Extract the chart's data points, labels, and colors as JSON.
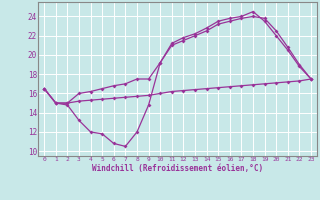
{
  "xlabel": "Windchill (Refroidissement éolien,°C)",
  "bg_color": "#c8e8e8",
  "line_color": "#993399",
  "line1_x": [
    0,
    1,
    2,
    3,
    4,
    5,
    6,
    7,
    8,
    9,
    10,
    11,
    12,
    13,
    14,
    15,
    16,
    17,
    18,
    19,
    20,
    21,
    22,
    23
  ],
  "line1_y": [
    16.5,
    15.0,
    14.8,
    13.2,
    12.0,
    11.8,
    10.8,
    10.5,
    12.0,
    14.8,
    19.2,
    21.2,
    21.8,
    22.2,
    22.8,
    23.5,
    23.8,
    24.0,
    24.5,
    23.5,
    22.0,
    20.5,
    18.8,
    17.5
  ],
  "line2_x": [
    0,
    1,
    2,
    3,
    4,
    5,
    6,
    7,
    8,
    9,
    10,
    11,
    12,
    13,
    14,
    15,
    16,
    17,
    18,
    19,
    20,
    21,
    22,
    23
  ],
  "line2_y": [
    16.5,
    15.0,
    15.0,
    16.0,
    16.2,
    16.5,
    16.8,
    17.0,
    17.5,
    17.5,
    19.2,
    21.0,
    21.5,
    22.0,
    22.5,
    23.2,
    23.5,
    23.8,
    24.0,
    23.8,
    22.5,
    20.8,
    19.0,
    17.5
  ],
  "line3_x": [
    0,
    1,
    2,
    3,
    4,
    5,
    6,
    7,
    8,
    9,
    10,
    11,
    12,
    13,
    14,
    15,
    16,
    17,
    18,
    19,
    20,
    21,
    22,
    23
  ],
  "line3_y": [
    16.5,
    15.0,
    15.0,
    15.2,
    15.3,
    15.4,
    15.5,
    15.6,
    15.7,
    15.8,
    16.0,
    16.2,
    16.3,
    16.4,
    16.5,
    16.6,
    16.7,
    16.8,
    16.9,
    17.0,
    17.1,
    17.2,
    17.3,
    17.5
  ],
  "xlim": [
    -0.5,
    23.5
  ],
  "ylim": [
    9.5,
    25.5
  ],
  "yticks": [
    10,
    12,
    14,
    16,
    18,
    20,
    22,
    24
  ],
  "xticks": [
    0,
    1,
    2,
    3,
    4,
    5,
    6,
    7,
    8,
    9,
    10,
    11,
    12,
    13,
    14,
    15,
    16,
    17,
    18,
    19,
    20,
    21,
    22,
    23
  ]
}
